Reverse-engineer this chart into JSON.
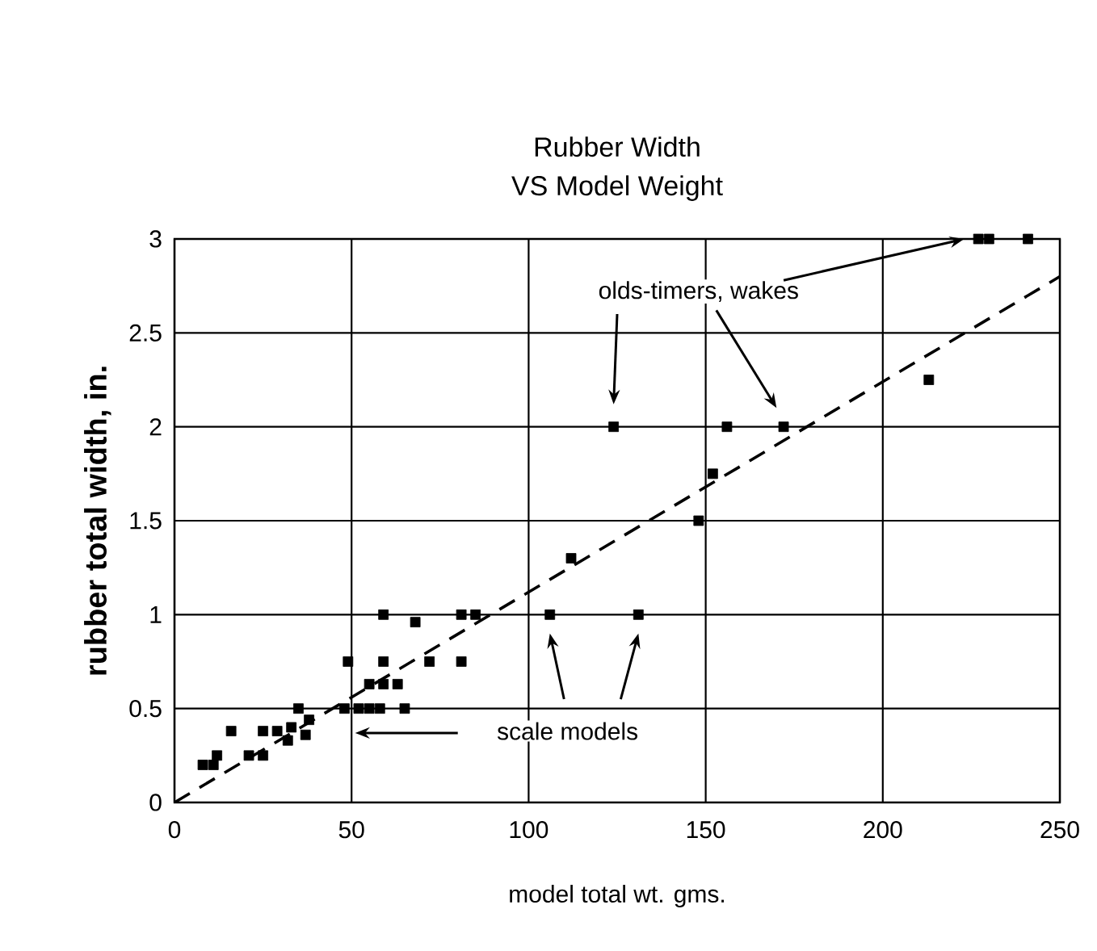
{
  "chart_data": {
    "type": "scatter",
    "title": "Rubber Width",
    "subtitle": "VS Model Weight",
    "xlabel": "model total wt. gms.",
    "ylabel": "rubber total width, in.",
    "xlim": [
      0,
      250
    ],
    "ylim": [
      0,
      3
    ],
    "xticks": [
      0,
      50,
      100,
      150,
      200,
      250
    ],
    "yticks": [
      0,
      0.5,
      1,
      1.5,
      2,
      2.5,
      3
    ],
    "grid": true,
    "marker": "square",
    "series": [
      {
        "color": "#000000",
        "x": [
          8,
          11,
          12,
          16,
          21,
          25,
          25,
          29,
          32,
          33,
          35,
          37,
          38,
          48,
          49,
          52,
          55,
          55,
          58,
          59,
          59,
          59,
          63,
          65,
          68,
          72,
          81,
          81,
          85,
          106,
          112,
          124,
          131,
          148,
          152,
          156,
          172,
          213,
          227,
          230,
          241
        ],
        "values": [
          0.2,
          0.2,
          0.25,
          0.38,
          0.25,
          0.25,
          0.38,
          0.38,
          0.33,
          0.4,
          0.5,
          0.36,
          0.44,
          0.5,
          0.75,
          0.5,
          0.5,
          0.63,
          0.5,
          0.63,
          0.75,
          1.0,
          0.63,
          0.5,
          0.96,
          0.75,
          1.0,
          0.75,
          1.0,
          1.0,
          1.3,
          2.0,
          1.0,
          1.5,
          1.75,
          2.0,
          2.0,
          2.25,
          3.0,
          3.0,
          3.0
        ]
      },
      {
        "type": "line",
        "color": "#000000",
        "line_style": "dashed",
        "marker": "none",
        "x": [
          0,
          250
        ],
        "values": [
          0,
          2.8
        ]
      }
    ],
    "annotations": [
      "olds-timers, wakes",
      "scale models"
    ]
  }
}
